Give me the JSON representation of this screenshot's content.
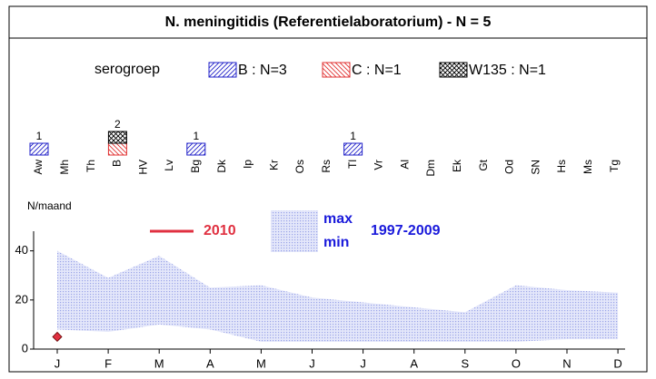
{
  "chart_data": [
    {
      "type": "bar",
      "title": "N. meningitidis (Referentielaboratorium) - N = 5",
      "legend_title": "serogroep",
      "categories": [
        "Aw",
        "Mh",
        "Th",
        "B",
        "HV",
        "Lv",
        "Bg",
        "Dk",
        "Ip",
        "Kr",
        "Os",
        "Rs",
        "Tl",
        "Vr",
        "Al",
        "Dm",
        "Ek",
        "Gt",
        "Od",
        "SN",
        "Hs",
        "Ms",
        "Tg"
      ],
      "series": [
        {
          "name": "B : N=3",
          "color": "#2020c8",
          "hatch": "forward",
          "values": [
            1,
            0,
            0,
            0,
            0,
            0,
            1,
            0,
            0,
            0,
            0,
            0,
            1,
            0,
            0,
            0,
            0,
            0,
            0,
            0,
            0,
            0,
            0
          ]
        },
        {
          "name": "C : N=1",
          "color": "#e03030",
          "hatch": "backward",
          "values": [
            0,
            0,
            0,
            1,
            0,
            0,
            0,
            0,
            0,
            0,
            0,
            0,
            0,
            0,
            0,
            0,
            0,
            0,
            0,
            0,
            0,
            0,
            0
          ]
        },
        {
          "name": "W135 : N=1",
          "color": "#000000",
          "hatch": "cross",
          "values": [
            0,
            0,
            0,
            1,
            0,
            0,
            0,
            0,
            0,
            0,
            0,
            0,
            0,
            0,
            0,
            0,
            0,
            0,
            0,
            0,
            0,
            0,
            0
          ]
        }
      ],
      "totals": [
        1,
        null,
        null,
        2,
        null,
        null,
        1,
        null,
        null,
        null,
        null,
        null,
        1,
        null,
        null,
        null,
        null,
        null,
        null,
        null,
        null,
        null,
        null
      ]
    },
    {
      "type": "area",
      "y_label": "N/maand",
      "band_label": "1997-2009",
      "categories": [
        "J",
        "F",
        "M",
        "A",
        "M",
        "J",
        "J",
        "A",
        "S",
        "O",
        "N",
        "D"
      ],
      "ylim": [
        0,
        48
      ],
      "yticks": [
        0,
        20,
        40
      ],
      "band": [
        {
          "name": "max",
          "color": "#1a1adb",
          "values": [
            40,
            29,
            38,
            25,
            26,
            21,
            19,
            17,
            15,
            26,
            24,
            23
          ]
        },
        {
          "name": "min",
          "color": "#1a1adb",
          "values": [
            8,
            7,
            10,
            8,
            3,
            3,
            3,
            3,
            3,
            3,
            4,
            4
          ]
        }
      ],
      "band_color": "#9aa3e8",
      "series": [
        {
          "name": "2010",
          "color": "#e03040",
          "values": [
            5,
            null,
            null,
            null,
            null,
            null,
            null,
            null,
            null,
            null,
            null,
            null
          ]
        }
      ]
    }
  ]
}
